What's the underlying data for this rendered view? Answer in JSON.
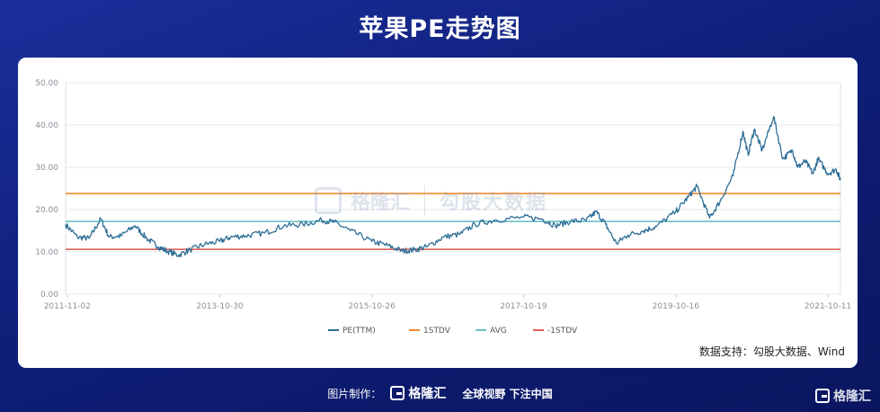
{
  "header": {
    "title": "苹果PE走势图"
  },
  "chart_data": {
    "type": "line",
    "title": "苹果PE走势图",
    "ylim": [
      0,
      50
    ],
    "yticks": [
      "0.00",
      "10.00",
      "20.00",
      "30.00",
      "40.00",
      "50.00"
    ],
    "xlim": [
      "2011-10-25",
      "2021-12-10"
    ],
    "xticks": [
      {
        "date": "2011-11-02",
        "label": "2011-11-02"
      },
      {
        "date": "2013-10-30",
        "label": "2013-10-30"
      },
      {
        "date": "2015-10-26",
        "label": "2015-10-26"
      },
      {
        "date": "2017-10-19",
        "label": "2017-10-19"
      },
      {
        "date": "2019-10-16",
        "label": "2019-10-16"
      },
      {
        "date": "2021-10-11",
        "label": "2021-10-11"
      }
    ],
    "grid": "horizontal",
    "legend_position": "bottom",
    "series": [
      {
        "name": "PE(TTM)",
        "color": "#2e6f97",
        "points": [
          [
            "2011-10-25",
            16.5
          ],
          [
            "2011-12-20",
            13.5
          ],
          [
            "2012-02-15",
            13.2
          ],
          [
            "2012-04-10",
            17.8
          ],
          [
            "2012-05-20",
            13.5
          ],
          [
            "2012-07-15",
            13.8
          ],
          [
            "2012-09-20",
            16.2
          ],
          [
            "2012-11-15",
            13.2
          ],
          [
            "2013-01-10",
            11.2
          ],
          [
            "2013-02-20",
            10.2
          ],
          [
            "2013-04-15",
            9.2
          ],
          [
            "2013-06-10",
            10.5
          ],
          [
            "2013-08-20",
            11.8
          ],
          [
            "2013-10-30",
            12.5
          ],
          [
            "2013-12-20",
            13.5
          ],
          [
            "2014-03-01",
            13.8
          ],
          [
            "2014-06-01",
            14.5
          ],
          [
            "2014-09-01",
            16.2
          ],
          [
            "2014-12-01",
            16.5
          ],
          [
            "2015-03-01",
            17.5
          ],
          [
            "2015-05-01",
            17.0
          ],
          [
            "2015-07-15",
            15.0
          ],
          [
            "2015-10-26",
            12.5
          ],
          [
            "2016-01-10",
            11.5
          ],
          [
            "2016-03-20",
            10.2
          ],
          [
            "2016-05-15",
            10.5
          ],
          [
            "2016-07-15",
            11.2
          ],
          [
            "2016-10-01",
            13.5
          ],
          [
            "2016-12-20",
            14.2
          ],
          [
            "2017-03-01",
            16.5
          ],
          [
            "2017-06-01",
            17.5
          ],
          [
            "2017-10-19",
            18.2
          ],
          [
            "2018-01-15",
            17.8
          ],
          [
            "2018-03-20",
            16.2
          ],
          [
            "2018-06-01",
            17.2
          ],
          [
            "2018-08-15",
            17.5
          ],
          [
            "2018-10-01",
            19.5
          ],
          [
            "2018-11-15",
            16.5
          ],
          [
            "2019-01-05",
            12.0
          ],
          [
            "2019-03-01",
            14.0
          ],
          [
            "2019-05-15",
            15.0
          ],
          [
            "2019-07-15",
            16.0
          ],
          [
            "2019-10-16",
            19.5
          ],
          [
            "2019-12-15",
            23.0
          ],
          [
            "2020-01-25",
            25.5
          ],
          [
            "2020-03-25",
            18.0
          ],
          [
            "2020-05-15",
            22.0
          ],
          [
            "2020-07-15",
            28.0
          ],
          [
            "2020-09-01",
            38.5
          ],
          [
            "2020-09-25",
            33.0
          ],
          [
            "2020-10-25",
            39.0
          ],
          [
            "2020-12-01",
            34.0
          ],
          [
            "2021-01-25",
            42.0
          ],
          [
            "2021-03-10",
            32.0
          ],
          [
            "2021-04-25",
            34.0
          ],
          [
            "2021-05-20",
            30.0
          ],
          [
            "2021-06-25",
            31.5
          ],
          [
            "2021-08-01",
            28.5
          ],
          [
            "2021-08-25",
            32.0
          ],
          [
            "2021-10-11",
            28.5
          ],
          [
            "2021-11-20",
            29.5
          ],
          [
            "2021-12-10",
            27.0
          ]
        ]
      },
      {
        "name": "1STDV",
        "color": "#f08a30",
        "value": 23.8
      },
      {
        "name": "AVG",
        "color": "#6cc0c8",
        "value": 17.2
      },
      {
        "name": "-1STDV",
        "color": "#e0605a",
        "value": 10.6
      }
    ]
  },
  "watermark": {
    "brand": "格隆汇",
    "subtitle": "勾股大数据"
  },
  "source_note": "数据支持：勾股大数据、Wind",
  "footer": {
    "made_by": "图片制作：",
    "brand": "格隆汇",
    "slogan": "全球视野 下注中国"
  },
  "corner_logo": "格隆汇",
  "colors": {
    "background": "#12228a",
    "card": "#ffffff",
    "axis_text": "#8a8f99",
    "grid": "#e6e8ec"
  }
}
